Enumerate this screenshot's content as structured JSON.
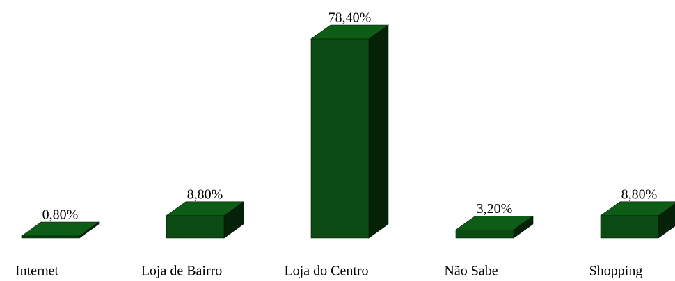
{
  "chart_data": {
    "type": "bar3d",
    "categories": [
      "Internet",
      "Loja de Bairro",
      "Loja do Centro",
      "Não Sabe",
      "Shopping"
    ],
    "values": [
      0.8,
      8.8,
      78.4,
      3.2,
      8.8
    ],
    "value_labels": [
      "0,80%",
      "8,80%",
      "78,40%",
      "3,20%",
      "8,80%"
    ],
    "color": "#0b4a12"
  }
}
